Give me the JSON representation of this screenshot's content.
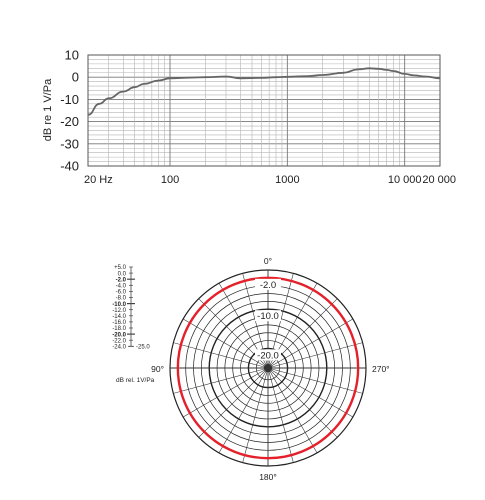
{
  "chart_data": [
    {
      "type": "line",
      "ylabel": "dB re 1 V/Pa",
      "x_scale": "log",
      "xlim": [
        20,
        20000
      ],
      "ylim": [
        -40,
        10
      ],
      "grid": true,
      "yticks": [
        10,
        0,
        -10,
        -20,
        -30,
        -40
      ],
      "ytick_labels": [
        "10",
        "0",
        "-10",
        "-20",
        "-30",
        "-40"
      ],
      "xticks": [
        20,
        100,
        1000,
        10000,
        20000
      ],
      "xtick_labels": [
        "20 Hz",
        "100",
        "1000",
        "10 000",
        "20 000"
      ],
      "series": [
        {
          "x": [
            20,
            25,
            30,
            40,
            50,
            60,
            80,
            100,
            150,
            200,
            300,
            400,
            600,
            800,
            1000,
            1500,
            2000,
            3000,
            4000,
            5000,
            6000,
            7000,
            8000,
            10000,
            12000,
            15000,
            20000
          ],
          "y": [
            -17,
            -12,
            -9.5,
            -6.5,
            -4.5,
            -3,
            -1.5,
            -0.5,
            -0.2,
            0,
            0.3,
            -0.5,
            -0.3,
            0,
            0.2,
            0.5,
            1,
            2,
            3.5,
            4,
            3.8,
            3.3,
            2.8,
            1.5,
            0.8,
            0.3,
            -0.5
          ],
          "color": "#666666"
        }
      ]
    },
    {
      "type": "polar",
      "angle_labels": [
        "0°",
        "90°",
        "180°",
        "270°"
      ],
      "ring_labels": [
        "-2.0",
        "-10.0",
        "-20.0"
      ],
      "scale_labels": [
        "+5.0",
        "0.0",
        "-2.0",
        "-4.0",
        "-6.0",
        "-8.0",
        "-10.0",
        "-12.0",
        "-14.0",
        "-16.0",
        "-18.0",
        "-20.0",
        "-22.0",
        "-24.0",
        "-25.0"
      ],
      "scale_values": [
        5,
        0,
        -2,
        -4,
        -6,
        -8,
        -10,
        -12,
        -14,
        -16,
        -18,
        -20,
        -22,
        -24,
        -25
      ],
      "bold_scale_values": [
        -2,
        -10,
        -20
      ],
      "scale_unit": "dB rel. 1V/Pa",
      "pattern_level_db": -2,
      "pattern_shape": "omnidirectional",
      "pattern_color": "#e4202a"
    }
  ]
}
